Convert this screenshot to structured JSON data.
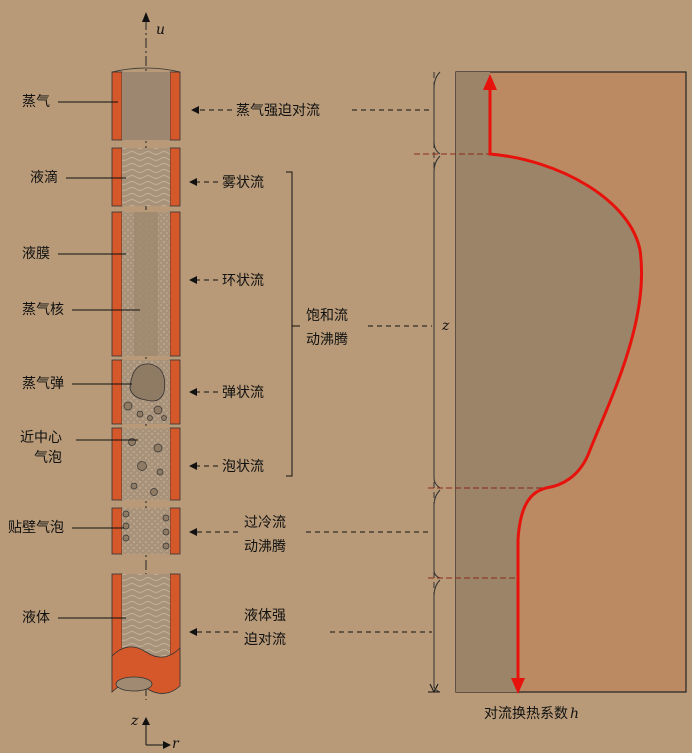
{
  "axis": {
    "u_label": "u",
    "z_label": "z",
    "r_label": "r"
  },
  "left_labels": {
    "vapor": "蒸气",
    "droplets": "液滴",
    "liquid_film": "液膜",
    "vapor_core": "蒸气核",
    "vapor_slug": "蒸气弹",
    "near_center_bubble_1": "近中心",
    "near_center_bubble_2": "气泡",
    "wall_bubble": "贴壁气泡",
    "liquid": "液体"
  },
  "regimes": {
    "vapor_forced": "蒸气强迫对流",
    "mist": "雾状流",
    "annular": "环状流",
    "slug": "弹状流",
    "bubbly": "泡状流",
    "saturated_1": "饱和流",
    "saturated_2": "动沸腾",
    "subcooled_1": "过冷流",
    "subcooled_2": "动沸腾",
    "liquid_forced_1": "液体强",
    "liquid_forced_2": "迫对流"
  },
  "right_panel": {
    "z_label": "z",
    "x_caption": "对流换热系数",
    "x_symbol": "h"
  },
  "colors": {
    "background": "#b89a78",
    "tube_wall": "#d5582a",
    "panel_fill": "#bb8a62",
    "region_fill": "#9b8468",
    "curve": "#e8120c"
  }
}
